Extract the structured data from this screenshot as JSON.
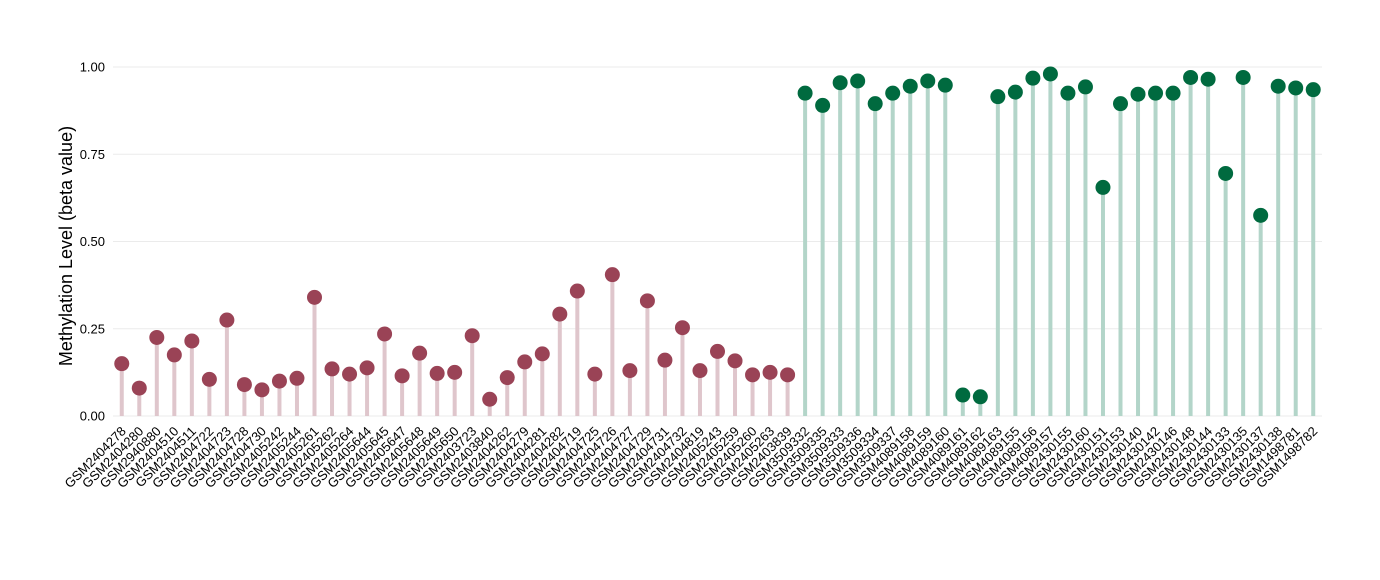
{
  "chart_data": {
    "type": "lollipop",
    "y_label": "Methylation Level (beta value)",
    "categories": [
      "GSM2404278",
      "GSM2404280",
      "GSM2940880",
      "GSM2404510",
      "GSM2404511",
      "GSM2404722",
      "GSM2404723",
      "GSM2404728",
      "GSM2404730",
      "GSM2405242",
      "GSM2405244",
      "GSM2405261",
      "GSM2405262",
      "GSM2405264",
      "GSM2405644",
      "GSM2405645",
      "GSM2405647",
      "GSM2405648",
      "GSM2405649",
      "GSM2405650",
      "GSM2403723",
      "GSM2403840",
      "GSM2404262",
      "GSM2404279",
      "GSM2404281",
      "GSM2404282",
      "GSM2404719",
      "GSM2404725",
      "GSM2404726",
      "GSM2404727",
      "GSM2404729",
      "GSM2404731",
      "GSM2404732",
      "GSM2404819",
      "GSM2405243",
      "GSM2405259",
      "GSM2405260",
      "GSM2405263",
      "GSM2403839",
      "GSM3509332",
      "GSM3509335",
      "GSM3509333",
      "GSM3509336",
      "GSM3509334",
      "GSM3509337",
      "GSM4089158",
      "GSM4089159",
      "GSM4089160",
      "GSM4089161",
      "GSM4089162",
      "GSM4089163",
      "GSM4089155",
      "GSM4089156",
      "GSM4089157",
      "GSM2430155",
      "GSM2430160",
      "GSM2430151",
      "GSM2430153",
      "GSM2430140",
      "GSM2430142",
      "GSM2430146",
      "GSM2430148",
      "GSM2430144",
      "GSM2430133",
      "GSM2430135",
      "GSM2430137",
      "GSM2430138",
      "GSM1498781",
      "GSM1498782"
    ],
    "series": [
      {
        "color": "#9a4356",
        "stem_color": "#dfc6cc",
        "values": [
          0.15,
          0.08,
          0.225,
          0.175,
          0.215,
          0.105,
          0.275,
          0.09,
          0.075,
          0.1,
          0.108,
          0.34,
          0.135,
          0.12,
          0.138,
          0.235,
          0.115,
          0.18,
          0.122,
          0.125,
          0.23,
          0.048,
          0.11,
          0.155,
          0.178,
          0.292,
          0.358,
          0.12,
          0.405,
          0.13,
          0.33,
          0.16,
          0.253,
          0.13,
          0.185,
          0.158,
          0.118,
          0.125,
          0.118,
          null,
          null,
          null,
          null,
          null,
          null,
          null,
          null,
          null,
          null,
          null,
          null,
          null,
          null,
          null,
          null,
          null,
          null,
          null,
          null,
          null,
          null,
          null,
          null,
          null,
          null,
          null,
          null,
          null,
          null
        ]
      },
      {
        "color": "#006a3f",
        "stem_color": "#b3d5c9",
        "values": [
          null,
          null,
          null,
          null,
          null,
          null,
          null,
          null,
          null,
          null,
          null,
          null,
          null,
          null,
          null,
          null,
          null,
          null,
          null,
          null,
          null,
          null,
          null,
          null,
          null,
          null,
          null,
          null,
          null,
          null,
          null,
          null,
          null,
          null,
          null,
          null,
          null,
          null,
          null,
          0.925,
          0.89,
          0.955,
          0.96,
          0.895,
          0.925,
          0.945,
          0.96,
          0.948,
          0.06,
          0.055,
          0.915,
          0.928,
          0.968,
          0.98,
          0.925,
          0.943,
          0.655,
          0.895,
          0.922,
          0.925,
          0.925,
          0.97,
          0.965,
          0.695,
          0.97,
          0.575,
          0.945,
          0.94,
          0.935
        ]
      }
    ],
    "ylim": [
      0,
      1.0
    ],
    "yticks": [
      {
        "value": 0,
        "label": "0.00"
      },
      {
        "value": 0.25,
        "label": "0.25"
      },
      {
        "value": 0.5,
        "label": "0.50"
      },
      {
        "value": 0.75,
        "label": "0.75"
      },
      {
        "value": 1,
        "label": "1.00"
      }
    ],
    "grid": true
  }
}
